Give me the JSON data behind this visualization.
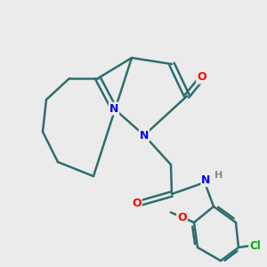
{
  "background_color": "#ebebeb",
  "bond_color": "#2d6e6e",
  "bond_width": 1.8,
  "N_color": "#0000ff",
  "O_color": "#ff0000",
  "Cl_color": "#00aa00",
  "H_color": "#888888",
  "figsize": [
    3.0,
    3.0
  ],
  "dpi": 100,
  "xlim": [
    0,
    10
  ],
  "ylim": [
    0,
    10
  ]
}
